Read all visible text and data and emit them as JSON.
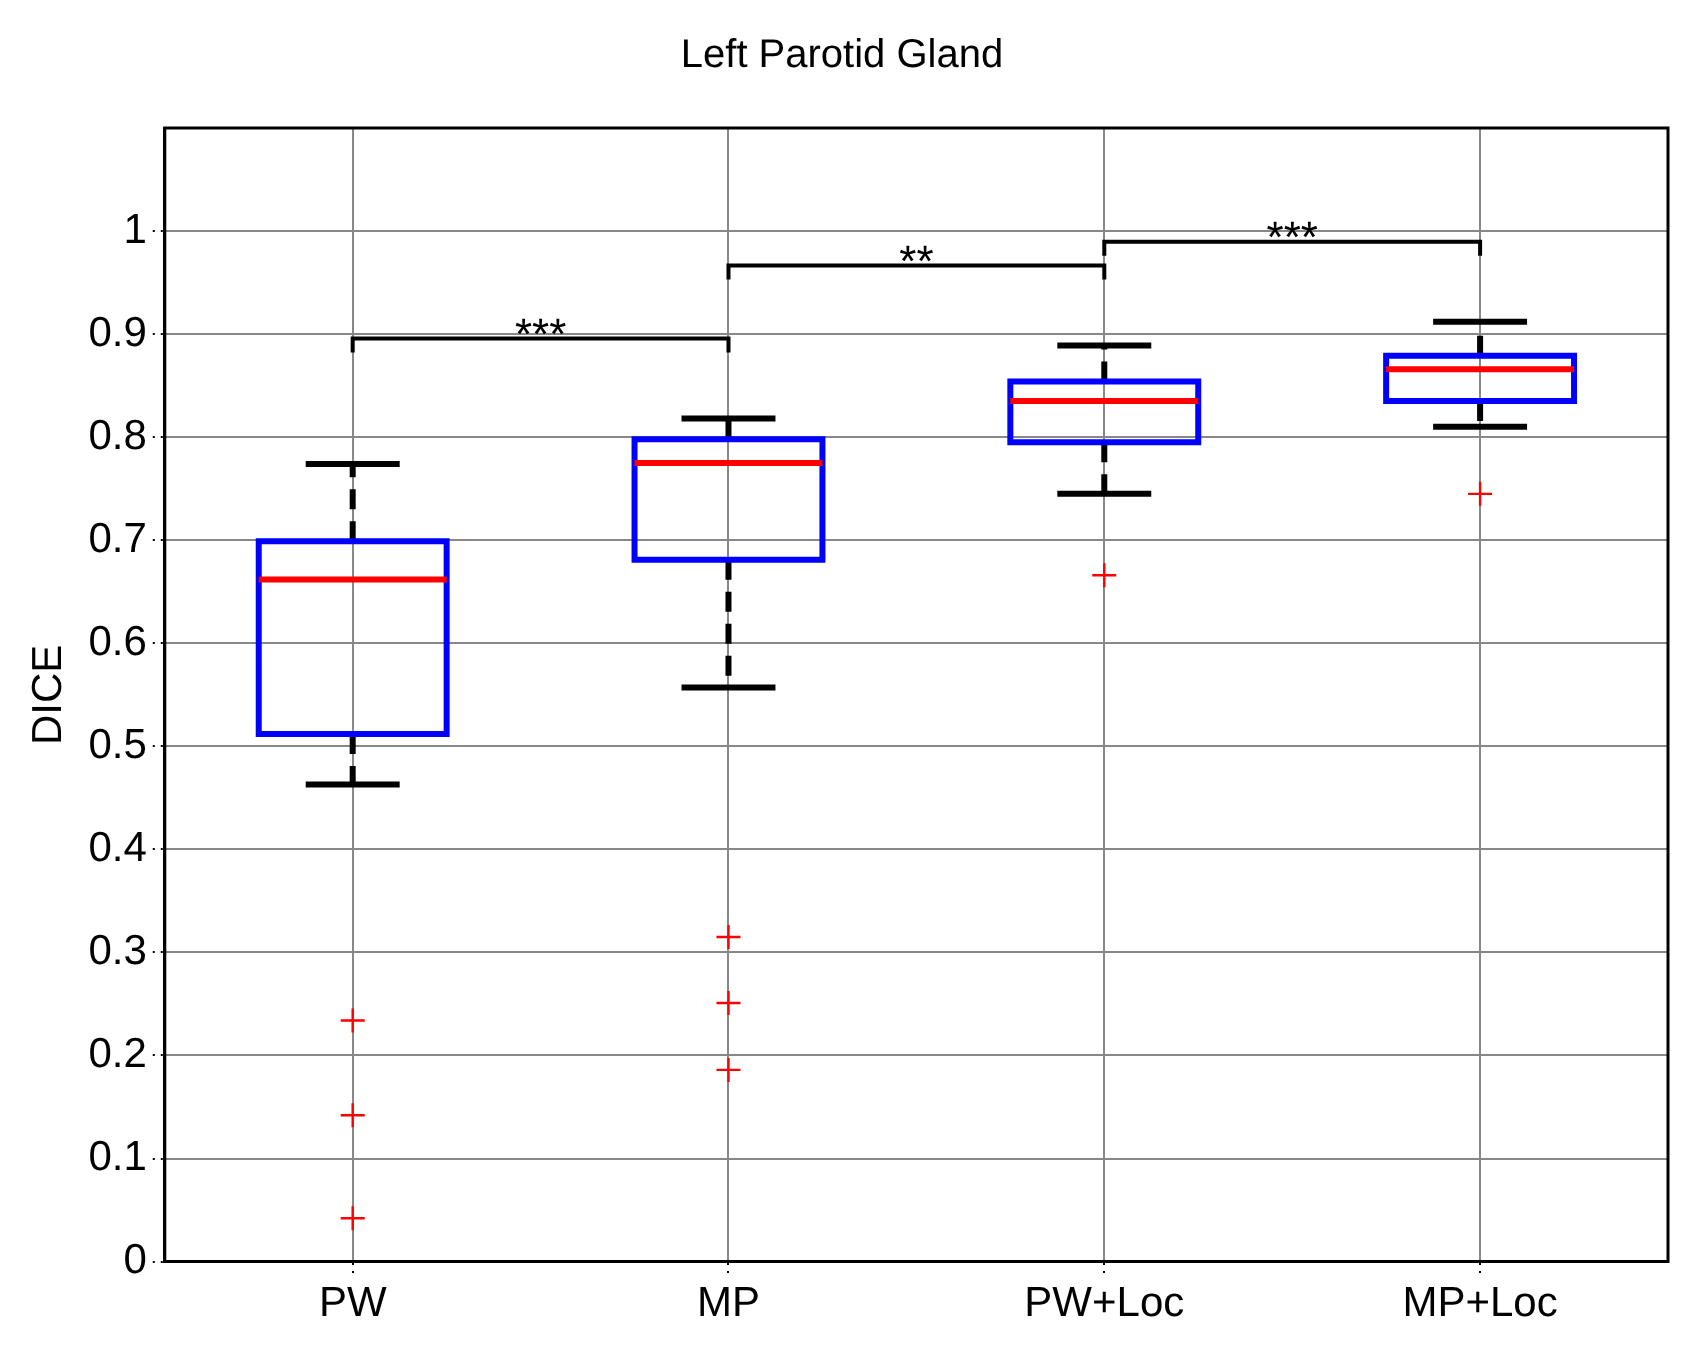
{
  "chart_data": {
    "type": "box",
    "title": "Left Parotid Gland",
    "ylabel": "DICE",
    "categories": [
      "PW",
      "MP",
      "PW+Loc",
      "MP+Loc"
    ],
    "boxes": [
      {
        "low": 0.463,
        "q1": 0.512,
        "median": 0.662,
        "q3": 0.699,
        "high": 0.774,
        "outliers": [
          0.234,
          0.142,
          0.042
        ]
      },
      {
        "low": 0.557,
        "q1": 0.681,
        "median": 0.775,
        "q3": 0.798,
        "high": 0.818,
        "outliers": [
          0.315,
          0.251,
          0.186
        ]
      },
      {
        "low": 0.745,
        "q1": 0.795,
        "median": 0.835,
        "q3": 0.854,
        "high": 0.889,
        "outliers": [
          0.666
        ]
      },
      {
        "low": 0.81,
        "q1": 0.835,
        "median": 0.866,
        "q3": 0.879,
        "high": 0.912,
        "outliers": [
          0.745
        ]
      }
    ],
    "ylim": [
      0,
      1.1
    ],
    "yticks": [
      0,
      0.1,
      0.2,
      0.3,
      0.4,
      0.5,
      0.6,
      0.7,
      0.8,
      0.9,
      1
    ],
    "grid": true,
    "legend": false,
    "annotations": [
      "***",
      "**",
      "***"
    ]
  }
}
